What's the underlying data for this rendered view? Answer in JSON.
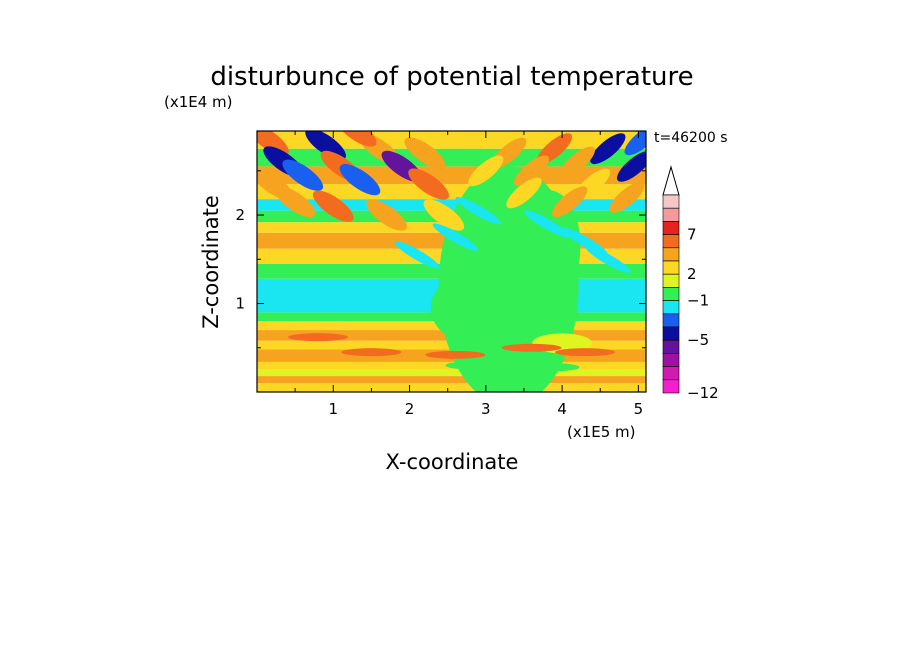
{
  "chart_data": {
    "type": "heatmap",
    "title": "disturbunce of potential temperature",
    "xlabel": "X-coordinate",
    "ylabel": "Z-coordinate",
    "x_unit": "(x1E5 m)",
    "y_unit": "(x1E4 m)",
    "time_label": "t=46200 s",
    "xlim": [
      0,
      5.1
    ],
    "ylim": [
      0,
      2.95
    ],
    "x_ticks": [
      "1",
      "2",
      "3",
      "4",
      "5"
    ],
    "x_tick_values": [
      1,
      2,
      3,
      4,
      5
    ],
    "y_ticks": [
      "1",
      "2"
    ],
    "y_tick_values": [
      1,
      2
    ],
    "colorbar": {
      "labels": [
        "7",
        "2",
        "−1",
        "−5",
        "−12"
      ],
      "label_values": [
        7,
        2,
        -1,
        -5,
        -12
      ],
      "colors_top_to_bottom": [
        "#f7c6c6",
        "#f49a9a",
        "#e8231e",
        "#f36b1e",
        "#f6a31f",
        "#fcd824",
        "#dff51f",
        "#33ee55",
        "#19e6f0",
        "#1a60f0",
        "#0b0f9f",
        "#62159c",
        "#a00fa6",
        "#d01ab2",
        "#f51fd0"
      ],
      "extend_top_color": "#ffffff"
    },
    "field_colors": {
      "warm_strong": "#e8231e",
      "warm": "#f36b1e",
      "orange": "#f6a31f",
      "yellow": "#fcd824",
      "lime": "#dff51f",
      "green": "#33ee55",
      "cyan": "#19e6f0",
      "blue": "#1a60f0",
      "navy": "#0b0f9f",
      "purple": "#62159c"
    }
  }
}
